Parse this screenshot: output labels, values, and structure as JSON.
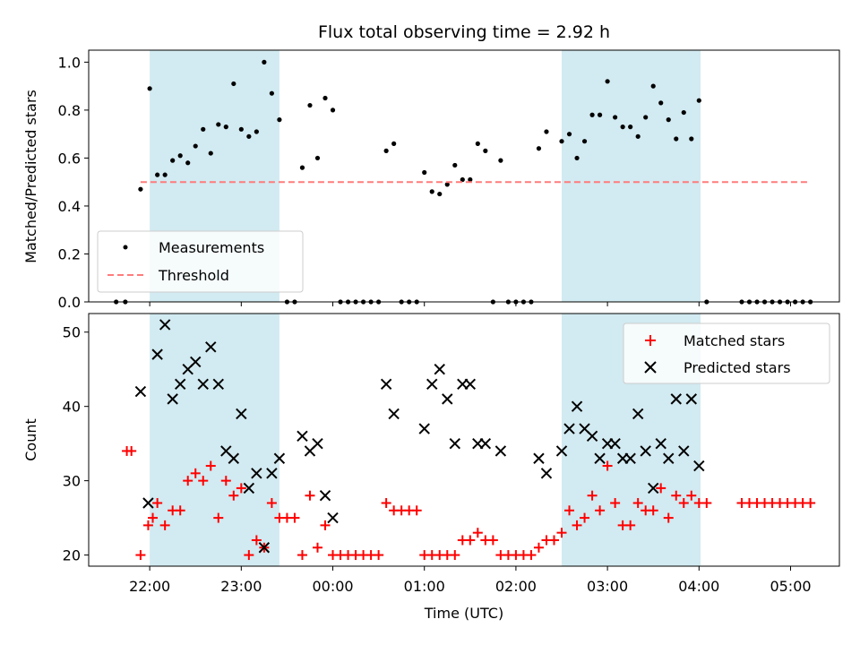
{
  "chart_data": [
    {
      "type": "scatter",
      "title": "Flux total observing time = 2.92 h",
      "xlabel": "",
      "ylabel": "Matched/Predicted stars",
      "ylim": [
        0,
        1.05
      ],
      "yticks": [
        "0.0",
        "0.2",
        "0.4",
        "0.6",
        "0.8",
        "1.0"
      ],
      "ytick_values": [
        0,
        0.2,
        0.4,
        0.6,
        0.8,
        1.0
      ],
      "xlim": [
        "21:20",
        "05:32"
      ],
      "x_units": "UTC time of day (HH:MM)",
      "grid": false,
      "legend_position": "lower-left",
      "shaded_intervals": [
        [
          "22:00",
          "23:25"
        ],
        [
          "02:30",
          "04:01"
        ]
      ],
      "shade_color": "#add8e6",
      "series": [
        {
          "name": "Measurements",
          "marker": "dot",
          "color": "#000000",
          "points": [
            [
              "21:38",
              0.0
            ],
            [
              "21:44",
              0.0
            ],
            [
              "21:54",
              0.47
            ],
            [
              "22:00",
              0.89
            ],
            [
              "22:05",
              0.53
            ],
            [
              "22:10",
              0.53
            ],
            [
              "22:15",
              0.59
            ],
            [
              "22:20",
              0.61
            ],
            [
              "22:25",
              0.58
            ],
            [
              "22:30",
              0.65
            ],
            [
              "22:35",
              0.72
            ],
            [
              "22:40",
              0.62
            ],
            [
              "22:45",
              0.74
            ],
            [
              "22:50",
              0.73
            ],
            [
              "22:55",
              0.91
            ],
            [
              "23:00",
              0.72
            ],
            [
              "23:05",
              0.69
            ],
            [
              "23:10",
              0.71
            ],
            [
              "23:15",
              1.0
            ],
            [
              "23:20",
              0.87
            ],
            [
              "23:25",
              0.76
            ],
            [
              "23:30",
              0.0
            ],
            [
              "23:35",
              0.0
            ],
            [
              "23:40",
              0.56
            ],
            [
              "23:45",
              0.82
            ],
            [
              "23:50",
              0.6
            ],
            [
              "23:55",
              0.85
            ],
            [
              "00:00",
              0.8
            ],
            [
              "00:05",
              0.0
            ],
            [
              "00:10",
              0.0
            ],
            [
              "00:15",
              0.0
            ],
            [
              "00:20",
              0.0
            ],
            [
              "00:25",
              0.0
            ],
            [
              "00:30",
              0.0
            ],
            [
              "00:35",
              0.63
            ],
            [
              "00:40",
              0.66
            ],
            [
              "00:45",
              0.0
            ],
            [
              "00:50",
              0.0
            ],
            [
              "00:55",
              0.0
            ],
            [
              "01:00",
              0.54
            ],
            [
              "01:05",
              0.46
            ],
            [
              "01:10",
              0.45
            ],
            [
              "01:15",
              0.49
            ],
            [
              "01:20",
              0.57
            ],
            [
              "01:25",
              0.51
            ],
            [
              "01:30",
              0.51
            ],
            [
              "01:35",
              0.66
            ],
            [
              "01:40",
              0.63
            ],
            [
              "01:45",
              0.0
            ],
            [
              "01:50",
              0.59
            ],
            [
              "01:55",
              0.0
            ],
            [
              "02:00",
              0.0
            ],
            [
              "02:05",
              0.0
            ],
            [
              "02:10",
              0.0
            ],
            [
              "02:15",
              0.64
            ],
            [
              "02:20",
              0.71
            ],
            [
              "02:30",
              0.67
            ],
            [
              "02:35",
              0.7
            ],
            [
              "02:40",
              0.6
            ],
            [
              "02:45",
              0.67
            ],
            [
              "02:50",
              0.78
            ],
            [
              "02:55",
              0.78
            ],
            [
              "03:00",
              0.92
            ],
            [
              "03:05",
              0.77
            ],
            [
              "03:10",
              0.73
            ],
            [
              "03:15",
              0.73
            ],
            [
              "03:20",
              0.69
            ],
            [
              "03:25",
              0.77
            ],
            [
              "03:30",
              0.9
            ],
            [
              "03:35",
              0.83
            ],
            [
              "03:40",
              0.76
            ],
            [
              "03:45",
              0.68
            ],
            [
              "03:50",
              0.79
            ],
            [
              "03:55",
              0.68
            ],
            [
              "04:00",
              0.84
            ],
            [
              "04:05",
              0.0
            ],
            [
              "04:28",
              0.0
            ],
            [
              "04:33",
              0.0
            ],
            [
              "04:38",
              0.0
            ],
            [
              "04:43",
              0.0
            ],
            [
              "04:48",
              0.0
            ],
            [
              "04:53",
              0.0
            ],
            [
              "04:58",
              0.0
            ],
            [
              "05:03",
              0.0
            ],
            [
              "05:08",
              0.0
            ],
            [
              "05:13",
              0.0
            ]
          ]
        },
        {
          "name": "Threshold",
          "style": "dashed-line",
          "color": "#ff7b7b",
          "points": [
            [
              "21:54",
              0.5
            ],
            [
              "05:13",
              0.5
            ]
          ]
        }
      ]
    },
    {
      "type": "scatter",
      "title": "",
      "xlabel": "Time (UTC)",
      "ylabel": "Count",
      "ylim": [
        18.5,
        52.5
      ],
      "yticks": [
        "20",
        "30",
        "40",
        "50"
      ],
      "ytick_values": [
        20,
        30,
        40,
        50
      ],
      "xlim": [
        "21:20",
        "05:32"
      ],
      "xticks": [
        "22:00",
        "23:00",
        "00:00",
        "01:00",
        "02:00",
        "03:00",
        "04:00",
        "05:00"
      ],
      "x_units": "UTC time of day (HH:MM)",
      "grid": false,
      "legend_position": "upper-right",
      "shaded_intervals": [
        [
          "22:00",
          "23:25"
        ],
        [
          "02:30",
          "04:01"
        ]
      ],
      "shade_color": "#add8e6",
      "series": [
        {
          "name": "Matched stars",
          "marker": "plus",
          "color": "#ff0000",
          "points": [
            [
              "21:45",
              34
            ],
            [
              "21:48",
              34
            ],
            [
              "21:54",
              20
            ],
            [
              "21:59",
              24
            ],
            [
              "22:02",
              25
            ],
            [
              "22:05",
              27
            ],
            [
              "22:10",
              24
            ],
            [
              "22:15",
              26
            ],
            [
              "22:20",
              26
            ],
            [
              "22:25",
              30
            ],
            [
              "22:30",
              31
            ],
            [
              "22:35",
              30
            ],
            [
              "22:40",
              32
            ],
            [
              "22:45",
              25
            ],
            [
              "22:50",
              30
            ],
            [
              "22:55",
              28
            ],
            [
              "23:00",
              29
            ],
            [
              "23:05",
              20
            ],
            [
              "23:10",
              22
            ],
            [
              "23:15",
              21
            ],
            [
              "23:20",
              27
            ],
            [
              "23:25",
              25
            ],
            [
              "23:30",
              25
            ],
            [
              "23:35",
              25
            ],
            [
              "23:40",
              20
            ],
            [
              "23:45",
              28
            ],
            [
              "23:50",
              21
            ],
            [
              "23:55",
              24
            ],
            [
              "00:00",
              20
            ],
            [
              "00:05",
              20
            ],
            [
              "00:10",
              20
            ],
            [
              "00:15",
              20
            ],
            [
              "00:20",
              20
            ],
            [
              "00:25",
              20
            ],
            [
              "00:30",
              20
            ],
            [
              "00:35",
              27
            ],
            [
              "00:40",
              26
            ],
            [
              "00:45",
              26
            ],
            [
              "00:50",
              26
            ],
            [
              "00:55",
              26
            ],
            [
              "01:00",
              20
            ],
            [
              "01:05",
              20
            ],
            [
              "01:10",
              20
            ],
            [
              "01:15",
              20
            ],
            [
              "01:20",
              20
            ],
            [
              "01:25",
              22
            ],
            [
              "01:30",
              22
            ],
            [
              "01:35",
              23
            ],
            [
              "01:40",
              22
            ],
            [
              "01:45",
              22
            ],
            [
              "01:50",
              20
            ],
            [
              "01:55",
              20
            ],
            [
              "02:00",
              20
            ],
            [
              "02:05",
              20
            ],
            [
              "02:10",
              20
            ],
            [
              "02:15",
              21
            ],
            [
              "02:20",
              22
            ],
            [
              "02:25",
              22
            ],
            [
              "02:30",
              23
            ],
            [
              "02:35",
              26
            ],
            [
              "02:40",
              24
            ],
            [
              "02:45",
              25
            ],
            [
              "02:50",
              28
            ],
            [
              "02:55",
              26
            ],
            [
              "03:00",
              32
            ],
            [
              "03:05",
              27
            ],
            [
              "03:10",
              24
            ],
            [
              "03:15",
              24
            ],
            [
              "03:20",
              27
            ],
            [
              "03:25",
              26
            ],
            [
              "03:30",
              26
            ],
            [
              "03:35",
              29
            ],
            [
              "03:40",
              25
            ],
            [
              "03:45",
              28
            ],
            [
              "03:50",
              27
            ],
            [
              "03:55",
              28
            ],
            [
              "04:00",
              27
            ],
            [
              "04:05",
              27
            ],
            [
              "04:28",
              27
            ],
            [
              "04:33",
              27
            ],
            [
              "04:38",
              27
            ],
            [
              "04:43",
              27
            ],
            [
              "04:48",
              27
            ],
            [
              "04:53",
              27
            ],
            [
              "04:58",
              27
            ],
            [
              "05:03",
              27
            ],
            [
              "05:08",
              27
            ],
            [
              "05:13",
              27
            ]
          ]
        },
        {
          "name": "Predicted stars",
          "marker": "x",
          "color": "#000000",
          "points": [
            [
              "21:54",
              42
            ],
            [
              "21:59",
              27
            ],
            [
              "22:05",
              47
            ],
            [
              "22:10",
              51
            ],
            [
              "22:15",
              41
            ],
            [
              "22:20",
              43
            ],
            [
              "22:25",
              45
            ],
            [
              "22:30",
              46
            ],
            [
              "22:35",
              43
            ],
            [
              "22:40",
              48
            ],
            [
              "22:45",
              43
            ],
            [
              "22:50",
              34
            ],
            [
              "22:55",
              33
            ],
            [
              "23:00",
              39
            ],
            [
              "23:05",
              29
            ],
            [
              "23:10",
              31
            ],
            [
              "23:15",
              21
            ],
            [
              "23:20",
              31
            ],
            [
              "23:25",
              33
            ],
            [
              "23:40",
              36
            ],
            [
              "23:45",
              34
            ],
            [
              "23:50",
              35
            ],
            [
              "23:55",
              28
            ],
            [
              "00:00",
              25
            ],
            [
              "00:35",
              43
            ],
            [
              "00:40",
              39
            ],
            [
              "01:00",
              37
            ],
            [
              "01:05",
              43
            ],
            [
              "01:10",
              45
            ],
            [
              "01:15",
              41
            ],
            [
              "01:20",
              35
            ],
            [
              "01:25",
              43
            ],
            [
              "01:30",
              43
            ],
            [
              "01:35",
              35
            ],
            [
              "01:40",
              35
            ],
            [
              "01:50",
              34
            ],
            [
              "02:15",
              33
            ],
            [
              "02:20",
              31
            ],
            [
              "02:30",
              34
            ],
            [
              "02:35",
              37
            ],
            [
              "02:40",
              40
            ],
            [
              "02:45",
              37
            ],
            [
              "02:50",
              36
            ],
            [
              "02:55",
              33
            ],
            [
              "03:00",
              35
            ],
            [
              "03:05",
              35
            ],
            [
              "03:10",
              33
            ],
            [
              "03:15",
              33
            ],
            [
              "03:20",
              39
            ],
            [
              "03:25",
              34
            ],
            [
              "03:30",
              29
            ],
            [
              "03:35",
              35
            ],
            [
              "03:40",
              33
            ],
            [
              "03:45",
              41
            ],
            [
              "03:50",
              34
            ],
            [
              "03:55",
              41
            ],
            [
              "04:00",
              32
            ]
          ]
        }
      ]
    }
  ]
}
